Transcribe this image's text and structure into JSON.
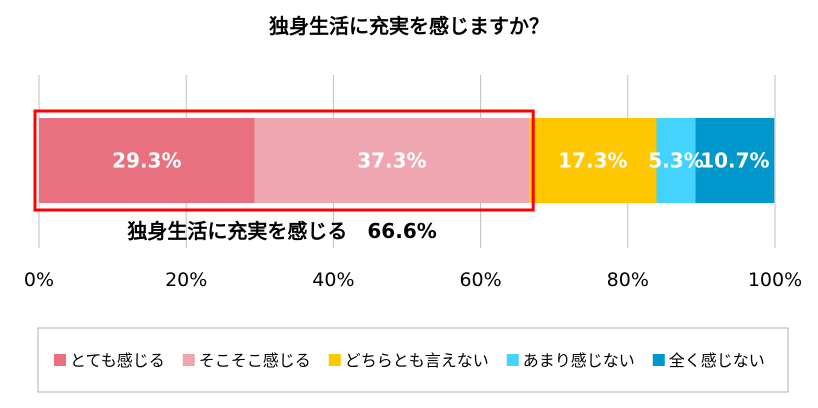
{
  "chart_data": {
    "type": "bar",
    "orientation": "horizontal",
    "stacked": true,
    "title": "独身生活に充実を感じますか？",
    "categories": [
      ""
    ],
    "series": [
      {
        "name": "とても感じる",
        "values": [
          29.3
        ],
        "label": "29.3%",
        "color": "#E8707F"
      },
      {
        "name": "そこそこ感じる",
        "values": [
          37.3
        ],
        "label": "37.3%",
        "color": "#F0A6B0"
      },
      {
        "name": "どちらとも言えない",
        "values": [
          17.3
        ],
        "label": "17.3%",
        "color": "#FFC700"
      },
      {
        "name": "あまり感じない",
        "values": [
          5.3
        ],
        "label": "5.3%",
        "color": "#44D2FF"
      },
      {
        "name": "全く感じない",
        "values": [
          10.7
        ],
        "label": "10.7%",
        "color": "#0098CC"
      }
    ],
    "xlim": [
      0,
      100
    ],
    "xticks": [
      {
        "value": 0,
        "label": "0%"
      },
      {
        "value": 20,
        "label": "20%"
      },
      {
        "value": 40,
        "label": "40%"
      },
      {
        "value": 60,
        "label": "60%"
      },
      {
        "value": 80,
        "label": "80%"
      },
      {
        "value": 100,
        "label": "100%"
      }
    ],
    "grid": true,
    "legend": "bottom",
    "annotation": {
      "text": "独身生活に充実を感じる　66.6%",
      "from": 0,
      "to": 66.6,
      "color": "#FF0000"
    }
  }
}
